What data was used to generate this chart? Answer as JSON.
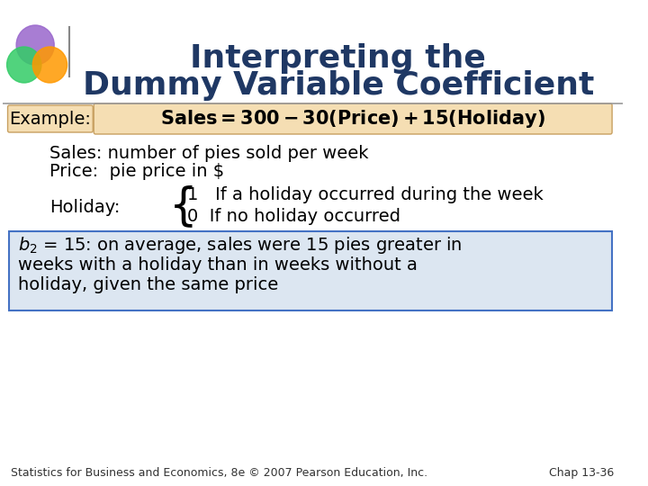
{
  "title_line1": "Interpreting the",
  "title_line2": "Dummy Variable Coefficient",
  "title_color": "#1f3864",
  "title_fontsize": 26,
  "bg_color": "#ffffff",
  "example_label": "Example:",
  "equation": "Sales = 300 - 30(Price) + 15(Holiday)",
  "equation_box_color": "#f5deb3",
  "example_box_color": "#f5deb3",
  "sales_line": "Sales: number of pies sold per week",
  "price_line": "Price:  pie price in $",
  "holiday_label": "Holiday:",
  "holiday_1": "1   If a holiday occurred during the week",
  "holiday_0": "0  If no holiday occurred",
  "box_text_line1": "b₂ = 15: on average, sales were 15 pies greater in",
  "box_text_line2": "weeks with a holiday than in weeks without a",
  "box_text_line3": "holiday, given the same price",
  "box_bg_color": "#dce6f1",
  "box_border_color": "#4472c4",
  "footer_left": "Statistics for Business and Economics, 8e © 2007 Pearson Education, Inc.",
  "footer_right": "Chap 13-36",
  "text_color": "#000000",
  "body_fontsize": 14,
  "footer_fontsize": 9
}
